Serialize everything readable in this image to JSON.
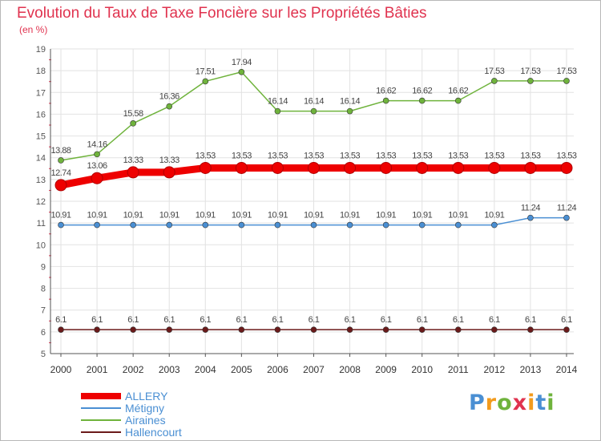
{
  "title": "Evolution du Taux de Taxe Foncière sur les Propriétés Bâties",
  "unit_label": "(en %)",
  "brand": {
    "name": "Proxiti",
    "letters": [
      "P",
      "r",
      "o",
      "x",
      "i",
      "t",
      "i"
    ],
    "colors": [
      "#4a8fd3",
      "#f29b1d",
      "#6fb33c",
      "#e0334f",
      "#f29b1d",
      "#4a8fd3",
      "#6fb33c"
    ]
  },
  "chart_data": {
    "type": "line",
    "title": "Evolution du Taux de Taxe Foncière sur les Propriétés Bâties",
    "ylabel": "(en %)",
    "xlabel": "",
    "x": [
      "2000",
      "2001",
      "2002",
      "2003",
      "2004",
      "2005",
      "2006",
      "2007",
      "2008",
      "2009",
      "2010",
      "2011",
      "2012",
      "2013",
      "2014"
    ],
    "ylim": [
      5,
      19
    ],
    "yticks": [
      "5",
      "6",
      "7",
      "8",
      "9",
      "10",
      "11",
      "12",
      "13",
      "14",
      "15",
      "16",
      "17",
      "18",
      "19"
    ],
    "grid": true,
    "legend_position": "bottom-left",
    "series": [
      {
        "name": "ALLERY",
        "color": "#ee0000",
        "emphasis": true,
        "values": [
          12.74,
          13.06,
          13.33,
          13.33,
          13.53,
          13.53,
          13.53,
          13.53,
          13.53,
          13.53,
          13.53,
          13.53,
          13.53,
          13.53,
          13.53
        ],
        "labels": [
          "12.74",
          "13.06",
          "13.33",
          "13.33",
          "13.53",
          "13.53",
          "13.53",
          "13.53",
          "13.53",
          "13.53",
          "13.53",
          "13.53",
          "13.53",
          "13.53",
          "13.53"
        ]
      },
      {
        "name": "Métigny",
        "color": "#4a8fd3",
        "values": [
          10.91,
          10.91,
          10.91,
          10.91,
          10.91,
          10.91,
          10.91,
          10.91,
          10.91,
          10.91,
          10.91,
          10.91,
          10.91,
          11.24,
          11.24
        ],
        "labels": [
          "10.91",
          "10.91",
          "10.91",
          "10.91",
          "10.91",
          "10.91",
          "10.91",
          "10.91",
          "10.91",
          "10.91",
          "10.91",
          "10.91",
          "10.91",
          "11.24",
          "11.24"
        ]
      },
      {
        "name": "Airaines",
        "color": "#6fb33c",
        "values": [
          13.88,
          14.16,
          15.58,
          16.36,
          17.51,
          17.94,
          16.14,
          16.14,
          16.14,
          16.62,
          16.62,
          16.62,
          17.53,
          17.53,
          17.53
        ],
        "labels": [
          "13.88",
          "14.16",
          "15.58",
          "16.36",
          "17.51",
          "17.94",
          "16.14",
          "16.14",
          "16.14",
          "16.62",
          "16.62",
          "16.62",
          "17.53",
          "17.53",
          "17.53"
        ]
      },
      {
        "name": "Hallencourt",
        "color": "#6b1a1a",
        "values": [
          6.1,
          6.1,
          6.1,
          6.1,
          6.1,
          6.1,
          6.1,
          6.1,
          6.1,
          6.1,
          6.1,
          6.1,
          6.1,
          6.1,
          6.1
        ],
        "labels": [
          "6.1",
          "6.1",
          "6.1",
          "6.1",
          "6.1",
          "6.1",
          "6.1",
          "6.1",
          "6.1",
          "6.1",
          "6.1",
          "6.1",
          "6.1",
          "6.1",
          "6.1"
        ]
      }
    ]
  }
}
